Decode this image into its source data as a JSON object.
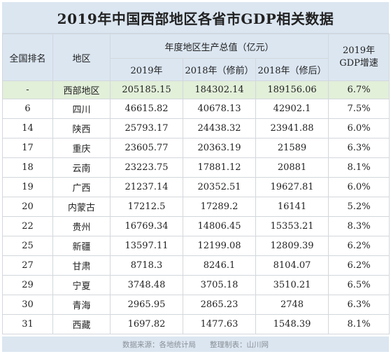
{
  "title": "2019年中国西部地区各省市GDP相关数据",
  "headers": {
    "rank": "全国排名",
    "region": "地区",
    "gross_group": "年度地区生产总值（亿元）",
    "y2019": "2019年",
    "y2018_before": "2018年（修前）",
    "y2018_after": "2018年（修后）",
    "growth": "2019年GDP增速"
  },
  "summary": {
    "rank": "-",
    "region": "西部地区",
    "y2019": "205185.15",
    "y2018_before": "184302.14",
    "y2018_after": "189156.06",
    "growth": "6.7%"
  },
  "rows": [
    {
      "rank": "6",
      "region": "四川",
      "y2019": "46615.82",
      "y2018_before": "40678.13",
      "y2018_after": "42902.1",
      "growth": "7.5%"
    },
    {
      "rank": "14",
      "region": "陕西",
      "y2019": "25793.17",
      "y2018_before": "24438.32",
      "y2018_after": "23941.88",
      "growth": "6.0%"
    },
    {
      "rank": "17",
      "region": "重庆",
      "y2019": "23605.77",
      "y2018_before": "20363.19",
      "y2018_after": "21589",
      "growth": "6.3%"
    },
    {
      "rank": "18",
      "region": "云南",
      "y2019": "23223.75",
      "y2018_before": "17881.12",
      "y2018_after": "20881",
      "growth": "8.1%"
    },
    {
      "rank": "19",
      "region": "广西",
      "y2019": "21237.14",
      "y2018_before": "20352.51",
      "y2018_after": "19627.81",
      "growth": "6.0%"
    },
    {
      "rank": "20",
      "region": "内蒙古",
      "y2019": "17212.5",
      "y2018_before": "17289.2",
      "y2018_after": "16141",
      "growth": "5.2%"
    },
    {
      "rank": "22",
      "region": "贵州",
      "y2019": "16769.34",
      "y2018_before": "14806.45",
      "y2018_after": "15353.21",
      "growth": "8.3%"
    },
    {
      "rank": "25",
      "region": "新疆",
      "y2019": "13597.11",
      "y2018_before": "12199.08",
      "y2018_after": "12809.39",
      "growth": "6.2%"
    },
    {
      "rank": "27",
      "region": "甘肃",
      "y2019": "8718.3",
      "y2018_before": "8246.1",
      "y2018_after": "8104.07",
      "growth": "6.2%"
    },
    {
      "rank": "29",
      "region": "宁夏",
      "y2019": "3748.48",
      "y2018_before": "3705.18",
      "y2018_after": "3510.21",
      "growth": "6.5%"
    },
    {
      "rank": "30",
      "region": "青海",
      "y2019": "2965.95",
      "y2018_before": "2865.23",
      "y2018_after": "2748",
      "growth": "6.3%"
    },
    {
      "rank": "31",
      "region": "西藏",
      "y2019": "1697.82",
      "y2018_before": "1477.63",
      "y2018_after": "1548.39",
      "growth": "8.1%"
    }
  ],
  "footer": {
    "source": "数据来源：各地统计局",
    "maker": "整理制表：山川网"
  },
  "colors": {
    "header_bg": "#dbe6f1",
    "summary_bg": "#e2efd9",
    "border": "#d3d7dc",
    "footer_text": "#8a8f96"
  }
}
